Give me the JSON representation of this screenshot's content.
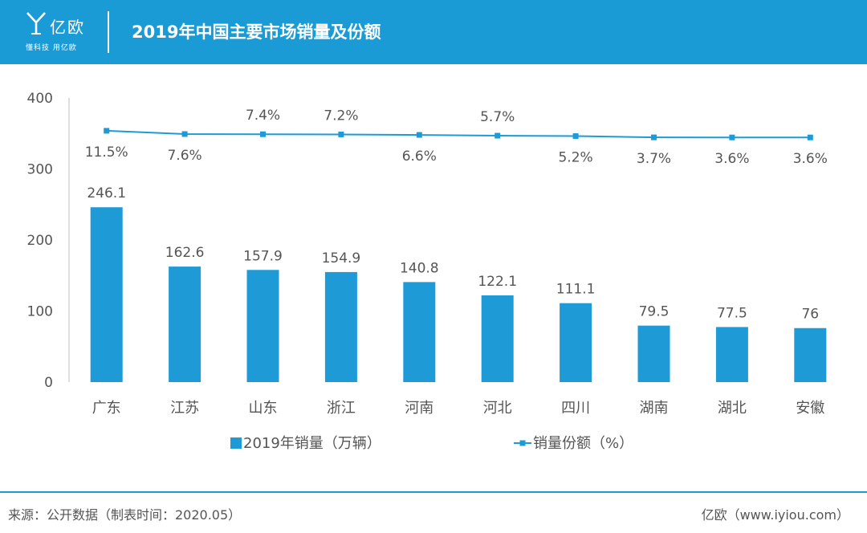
{
  "header": {
    "logo_name": "亿欧",
    "logo_slogan": "懂科技 用亿欧",
    "title": "2019年中国主要市场销量及份额"
  },
  "colors": {
    "brand": "#1a9bd6",
    "bar": "#1e9bd7",
    "line": "#1e9bd7",
    "axis_text": "#555555",
    "label_text": "#555555"
  },
  "chart_data": {
    "type": "bar",
    "categories": [
      "广东",
      "江苏",
      "山东",
      "浙江",
      "河南",
      "河北",
      "四川",
      "湖南",
      "湖北",
      "安徽"
    ],
    "series": [
      {
        "name": "2019年销量（万辆）",
        "type": "bar",
        "values": [
          246.1,
          162.6,
          157.9,
          154.9,
          140.8,
          122.1,
          111.1,
          79.5,
          77.5,
          76
        ]
      },
      {
        "name": "销量份额（%）",
        "type": "line",
        "values": [
          11.5,
          7.6,
          7.4,
          7.2,
          6.6,
          5.7,
          5.2,
          3.7,
          3.6,
          3.6
        ],
        "labels": [
          "11.5%",
          "7.6%",
          "7.4%",
          "7.2%",
          "6.6%",
          "5.7%",
          "5.2%",
          "3.7%",
          "3.6%",
          "3.6%"
        ],
        "label_positions": [
          "below",
          "below",
          "above",
          "above",
          "below",
          "above",
          "below",
          "below",
          "below",
          "below"
        ]
      }
    ],
    "bar_labels": [
      "246.1",
      "162.6",
      "157.9",
      "154.9",
      "140.8",
      "122.1",
      "111.1",
      "79.5",
      "77.5",
      "76"
    ],
    "y_ticks": [
      "0",
      "100",
      "200",
      "300",
      "400"
    ],
    "ylim": [
      0,
      400
    ],
    "grid": false,
    "legend_position": "bottom"
  },
  "footer": {
    "source": "来源：公开数据（制表时间：2020.05）",
    "brand": "亿欧（www.iyiou.com）"
  }
}
